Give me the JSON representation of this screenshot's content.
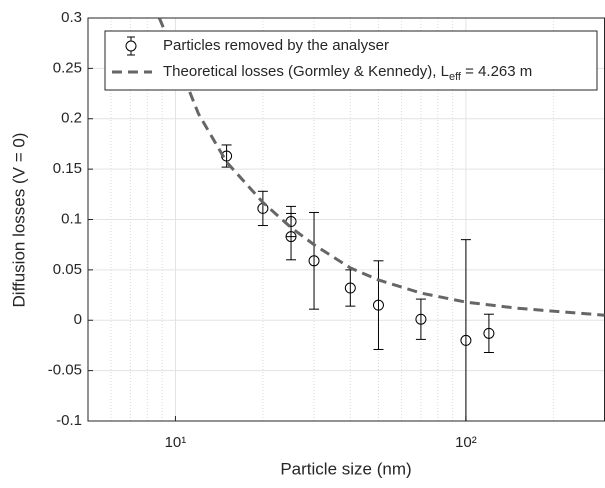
{
  "chart_data": {
    "type": "errorbar-line",
    "xlabel": "Particle size (nm)",
    "ylabel": "Diffusion losses (V = 0)",
    "xscale": "log",
    "xlim": [
      5,
      300
    ],
    "ylim": [
      -0.1,
      0.3
    ],
    "xticks": [
      {
        "value": 10,
        "label": "10¹"
      },
      {
        "value": 100,
        "label": "10²"
      }
    ],
    "yticks": [
      -0.1,
      -0.05,
      0,
      0.05,
      0.1,
      0.15,
      0.2,
      0.25,
      0.3
    ],
    "grid": true,
    "minor_grid": true,
    "legend_position": "top",
    "series": [
      {
        "name": "Particles removed by the analyser",
        "kind": "errorbar",
        "color": "#000000",
        "x": [
          15,
          20,
          25,
          25,
          30,
          40,
          50,
          70,
          100,
          120
        ],
        "values": [
          0.163,
          0.111,
          0.098,
          0.083,
          0.059,
          0.032,
          0.015,
          0.001,
          -0.02,
          -0.013
        ],
        "errors": [
          0.011,
          0.017,
          0.015,
          0.023,
          0.048,
          0.018,
          0.044,
          0.02,
          0.1,
          0.019
        ]
      },
      {
        "name": "Theoretical losses (Gormley & Kennedy), L",
        "name_subscript": "eff",
        "name_suffix": " = 4.263 m",
        "kind": "line",
        "dashed": true,
        "color": "#666666",
        "x": [
          8.8,
          10,
          12,
          15,
          20,
          25,
          30,
          40,
          50,
          70,
          100,
          150,
          200,
          300
        ],
        "values": [
          0.3,
          0.262,
          0.205,
          0.157,
          0.117,
          0.092,
          0.075,
          0.052,
          0.04,
          0.027,
          0.018,
          0.012,
          0.009,
          0.005
        ]
      }
    ]
  }
}
